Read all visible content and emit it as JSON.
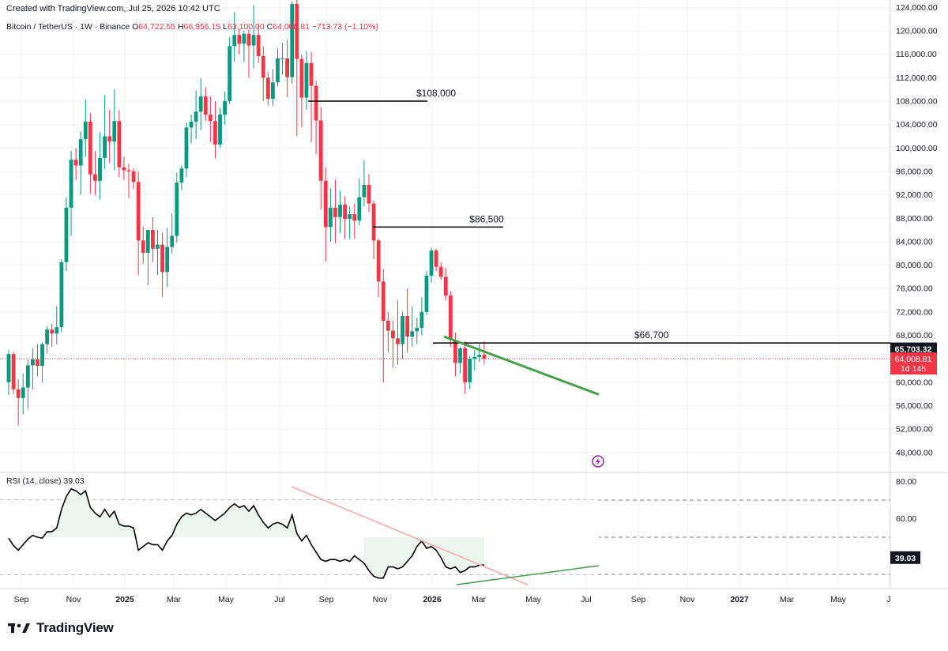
{
  "header": {
    "created_text": "Created with TradingView.com, Jul 25, 2026 10:42 UTC",
    "symbol": "Bitcoin / TetherUS · 1W · Binance",
    "o_label": "O",
    "o_value": "64,722.55",
    "h_label": "H",
    "h_value": "66,956.15",
    "l_label": "L",
    "l_value": "63,100.00",
    "c_label": "C",
    "c_value": "64,008.81",
    "change_value": "−713.73 (−1.10%)"
  },
  "rsi_label": {
    "name": "RSI (14, close)",
    "value": "39.03"
  },
  "brand": {
    "name": "TradingView"
  },
  "colors": {
    "up": "#089981",
    "down": "#f23645",
    "trend": "#43a047",
    "rsi_line": "#000000",
    "rsi_trend": "#f7a5a5",
    "rsi_fill": "#e8f5e9"
  },
  "chart_data": [
    {
      "type": "candlestick",
      "title": "Bitcoin / TetherUS · 1W · Binance",
      "ylim": [
        45000,
        125000
      ],
      "price_ticks": [
        "124,000.00",
        "120,000.00",
        "116,000.00",
        "112,000.00",
        "108,000.00",
        "104,000.00",
        "100,000.00",
        "96,000.00",
        "92,000.00",
        "88,000.00",
        "84,000.00",
        "80,000.00",
        "76,000.00",
        "72,000.00",
        "68,000.00",
        "60,000.00",
        "56,000.00",
        "52,000.00",
        "48,000.00"
      ],
      "time_ticks": [
        "Sep",
        "Nov",
        "2025",
        "Mar",
        "May",
        "Jul",
        "Sep",
        "Nov",
        "2026",
        "Mar",
        "May",
        "Jul",
        "Sep",
        "Nov",
        "2027",
        "Mar",
        "May",
        "J"
      ],
      "price_levels": [
        {
          "label": "$108,000",
          "value": 108000
        },
        {
          "label": "$86,500",
          "value": 86500
        },
        {
          "label": "$66,700",
          "value": 66700
        }
      ],
      "last_price": {
        "value": "64,008.81",
        "countdown": "1d 14h"
      },
      "level_tag": "65,703.32",
      "candles": [
        {
          "o": 60000,
          "h": 65500,
          "l": 57800,
          "c": 64800
        },
        {
          "o": 64800,
          "h": 65200,
          "l": 58000,
          "c": 58800
        },
        {
          "o": 58800,
          "h": 60500,
          "l": 52600,
          "c": 57300
        },
        {
          "o": 57300,
          "h": 61500,
          "l": 54500,
          "c": 59100
        },
        {
          "o": 59100,
          "h": 63800,
          "l": 55500,
          "c": 62900
        },
        {
          "o": 62900,
          "h": 65800,
          "l": 58800,
          "c": 63900
        },
        {
          "o": 63900,
          "h": 66500,
          "l": 61000,
          "c": 62800
        },
        {
          "o": 62800,
          "h": 66800,
          "l": 60000,
          "c": 66500
        },
        {
          "o": 66500,
          "h": 69500,
          "l": 65000,
          "c": 69000
        },
        {
          "o": 69000,
          "h": 70000,
          "l": 66000,
          "c": 68300
        },
        {
          "o": 68300,
          "h": 73000,
          "l": 66500,
          "c": 69400
        },
        {
          "o": 69400,
          "h": 81000,
          "l": 68500,
          "c": 80500
        },
        {
          "o": 80500,
          "h": 91500,
          "l": 79000,
          "c": 89800
        },
        {
          "o": 89800,
          "h": 99500,
          "l": 85000,
          "c": 98000
        },
        {
          "o": 98000,
          "h": 100000,
          "l": 94500,
          "c": 97000
        },
        {
          "o": 97000,
          "h": 102800,
          "l": 92000,
          "c": 101500
        },
        {
          "o": 101500,
          "h": 108300,
          "l": 98500,
          "c": 104500
        },
        {
          "o": 104500,
          "h": 106000,
          "l": 92200,
          "c": 95500
        },
        {
          "o": 95500,
          "h": 99500,
          "l": 92000,
          "c": 94400
        },
        {
          "o": 94400,
          "h": 102700,
          "l": 91200,
          "c": 98300
        },
        {
          "o": 98300,
          "h": 109000,
          "l": 96500,
          "c": 102000
        },
        {
          "o": 102000,
          "h": 106500,
          "l": 97500,
          "c": 101100
        },
        {
          "o": 101100,
          "h": 110000,
          "l": 96200,
          "c": 104600
        },
        {
          "o": 104600,
          "h": 106500,
          "l": 95000,
          "c": 96700
        },
        {
          "o": 96700,
          "h": 98500,
          "l": 94500,
          "c": 96200
        },
        {
          "o": 96200,
          "h": 97300,
          "l": 91400,
          "c": 96000
        },
        {
          "o": 96000,
          "h": 96500,
          "l": 93000,
          "c": 94200
        },
        {
          "o": 94200,
          "h": 96000,
          "l": 78300,
          "c": 84200
        },
        {
          "o": 84200,
          "h": 86600,
          "l": 80200,
          "c": 82100
        },
        {
          "o": 82100,
          "h": 85500,
          "l": 76600,
          "c": 86000
        },
        {
          "o": 86000,
          "h": 88200,
          "l": 80500,
          "c": 82800
        },
        {
          "o": 82800,
          "h": 86000,
          "l": 78300,
          "c": 83500
        },
        {
          "o": 83500,
          "h": 85500,
          "l": 74600,
          "c": 78800
        },
        {
          "o": 78800,
          "h": 86400,
          "l": 76200,
          "c": 83100
        },
        {
          "o": 83100,
          "h": 88800,
          "l": 82000,
          "c": 85000
        },
        {
          "o": 85000,
          "h": 95800,
          "l": 83800,
          "c": 94100
        },
        {
          "o": 94100,
          "h": 97000,
          "l": 92800,
          "c": 96500
        },
        {
          "o": 96500,
          "h": 104300,
          "l": 95000,
          "c": 103500
        },
        {
          "o": 103500,
          "h": 105700,
          "l": 100800,
          "c": 104500
        },
        {
          "o": 104500,
          "h": 109800,
          "l": 101500,
          "c": 106200
        },
        {
          "o": 106200,
          "h": 111900,
          "l": 103000,
          "c": 108800
        },
        {
          "o": 108800,
          "h": 110400,
          "l": 104600,
          "c": 105700
        },
        {
          "o": 105700,
          "h": 108800,
          "l": 101000,
          "c": 104600
        },
        {
          "o": 104600,
          "h": 108000,
          "l": 98200,
          "c": 100600
        },
        {
          "o": 100600,
          "h": 106800,
          "l": 100000,
          "c": 105700
        },
        {
          "o": 105700,
          "h": 109600,
          "l": 104000,
          "c": 108000
        },
        {
          "o": 108000,
          "h": 118900,
          "l": 107500,
          "c": 117400
        },
        {
          "o": 117400,
          "h": 123200,
          "l": 114700,
          "c": 119300
        },
        {
          "o": 119300,
          "h": 120300,
          "l": 116000,
          "c": 117800
        },
        {
          "o": 117800,
          "h": 120000,
          "l": 114700,
          "c": 119500
        },
        {
          "o": 119500,
          "h": 120200,
          "l": 112000,
          "c": 117500
        },
        {
          "o": 117500,
          "h": 124400,
          "l": 113600,
          "c": 119300
        },
        {
          "o": 119300,
          "h": 121000,
          "l": 114500,
          "c": 115700
        },
        {
          "o": 115700,
          "h": 117400,
          "l": 108000,
          "c": 112000
        },
        {
          "o": 112000,
          "h": 113000,
          "l": 107300,
          "c": 108400
        },
        {
          "o": 108400,
          "h": 113500,
          "l": 107200,
          "c": 111200
        },
        {
          "o": 111200,
          "h": 117000,
          "l": 110500,
          "c": 115300
        },
        {
          "o": 115300,
          "h": 117900,
          "l": 112500,
          "c": 115300
        },
        {
          "o": 115300,
          "h": 118500,
          "l": 108700,
          "c": 112100
        },
        {
          "o": 112100,
          "h": 125000,
          "l": 111000,
          "c": 124600
        },
        {
          "o": 124600,
          "h": 126200,
          "l": 102000,
          "c": 115200
        },
        {
          "o": 115200,
          "h": 116000,
          "l": 103500,
          "c": 108600
        },
        {
          "o": 108600,
          "h": 116600,
          "l": 106500,
          "c": 114500
        },
        {
          "o": 114500,
          "h": 116400,
          "l": 101000,
          "c": 110600
        },
        {
          "o": 110600,
          "h": 111500,
          "l": 98900,
          "c": 104700
        },
        {
          "o": 104700,
          "h": 107000,
          "l": 89500,
          "c": 94400
        },
        {
          "o": 94400,
          "h": 96700,
          "l": 80600,
          "c": 86500
        },
        {
          "o": 86500,
          "h": 93100,
          "l": 84000,
          "c": 89800
        },
        {
          "o": 89800,
          "h": 94600,
          "l": 83700,
          "c": 88200
        },
        {
          "o": 88200,
          "h": 92700,
          "l": 85500,
          "c": 90300
        },
        {
          "o": 90300,
          "h": 91700,
          "l": 84500,
          "c": 87900
        },
        {
          "o": 87900,
          "h": 90000,
          "l": 84400,
          "c": 88700
        },
        {
          "o": 88700,
          "h": 90500,
          "l": 84500,
          "c": 87600
        },
        {
          "o": 87600,
          "h": 94800,
          "l": 86800,
          "c": 91600
        },
        {
          "o": 91600,
          "h": 97900,
          "l": 90000,
          "c": 93700
        },
        {
          "o": 93700,
          "h": 95500,
          "l": 89000,
          "c": 90500
        },
        {
          "o": 90500,
          "h": 91000,
          "l": 81000,
          "c": 84200
        },
        {
          "o": 84200,
          "h": 84500,
          "l": 74500,
          "c": 77200
        },
        {
          "o": 77200,
          "h": 79300,
          "l": 60000,
          "c": 70500
        },
        {
          "o": 70500,
          "h": 72000,
          "l": 65100,
          "c": 68800
        },
        {
          "o": 68800,
          "h": 70500,
          "l": 62500,
          "c": 67500
        },
        {
          "o": 67500,
          "h": 74000,
          "l": 63000,
          "c": 66500
        },
        {
          "o": 66500,
          "h": 72000,
          "l": 64000,
          "c": 71300
        },
        {
          "o": 71300,
          "h": 76000,
          "l": 65000,
          "c": 67800
        },
        {
          "o": 67800,
          "h": 73000,
          "l": 66000,
          "c": 68700
        },
        {
          "o": 68700,
          "h": 71000,
          "l": 66500,
          "c": 69300
        },
        {
          "o": 69300,
          "h": 74500,
          "l": 68000,
          "c": 72000
        },
        {
          "o": 72000,
          "h": 79000,
          "l": 71500,
          "c": 78200
        },
        {
          "o": 78200,
          "h": 83000,
          "l": 77000,
          "c": 82500
        },
        {
          "o": 82500,
          "h": 82800,
          "l": 79000,
          "c": 79700
        },
        {
          "o": 79700,
          "h": 80500,
          "l": 77500,
          "c": 78000
        },
        {
          "o": 78000,
          "h": 79500,
          "l": 74000,
          "c": 74800
        },
        {
          "o": 74800,
          "h": 75500,
          "l": 66000,
          "c": 67200
        },
        {
          "o": 67200,
          "h": 68500,
          "l": 61000,
          "c": 63300
        },
        {
          "o": 63300,
          "h": 66000,
          "l": 61500,
          "c": 65800
        },
        {
          "o": 65800,
          "h": 67000,
          "l": 58000,
          "c": 60000
        },
        {
          "o": 60000,
          "h": 64500,
          "l": 58800,
          "c": 64000
        },
        {
          "o": 64000,
          "h": 65500,
          "l": 62000,
          "c": 64300
        },
        {
          "o": 64300,
          "h": 66500,
          "l": 63500,
          "c": 64700
        },
        {
          "o": 64722.55,
          "h": 66956.15,
          "l": 63100,
          "c": 64008.81
        }
      ]
    },
    {
      "type": "line",
      "title": "RSI (14, close)",
      "ylim": [
        22,
        84
      ],
      "y_ticks": [
        "80.00",
        "60.00"
      ],
      "levels": [
        70,
        50,
        30
      ],
      "last_value": "39.03",
      "values": [
        49.5,
        45.5,
        43,
        46,
        49,
        51,
        50,
        49.5,
        53,
        53,
        55,
        65,
        72,
        76,
        75,
        73,
        75,
        66,
        63,
        61,
        65,
        61,
        64,
        57,
        56,
        56,
        55,
        43,
        45,
        47,
        46,
        46,
        43,
        48,
        51,
        57,
        61,
        63,
        62,
        63,
        65,
        63,
        61,
        59,
        61,
        63,
        66,
        68,
        66,
        67,
        64,
        67,
        62,
        58,
        55,
        57,
        58,
        57,
        55,
        62,
        52,
        48,
        51,
        46,
        42,
        38,
        37,
        38,
        38,
        37,
        38,
        37,
        40,
        38,
        36,
        32,
        29,
        28,
        28,
        34,
        34,
        33,
        34,
        37,
        40,
        45,
        48,
        44,
        45,
        43,
        39,
        34,
        33,
        34,
        31,
        32,
        34,
        34,
        35,
        35
      ]
    }
  ]
}
